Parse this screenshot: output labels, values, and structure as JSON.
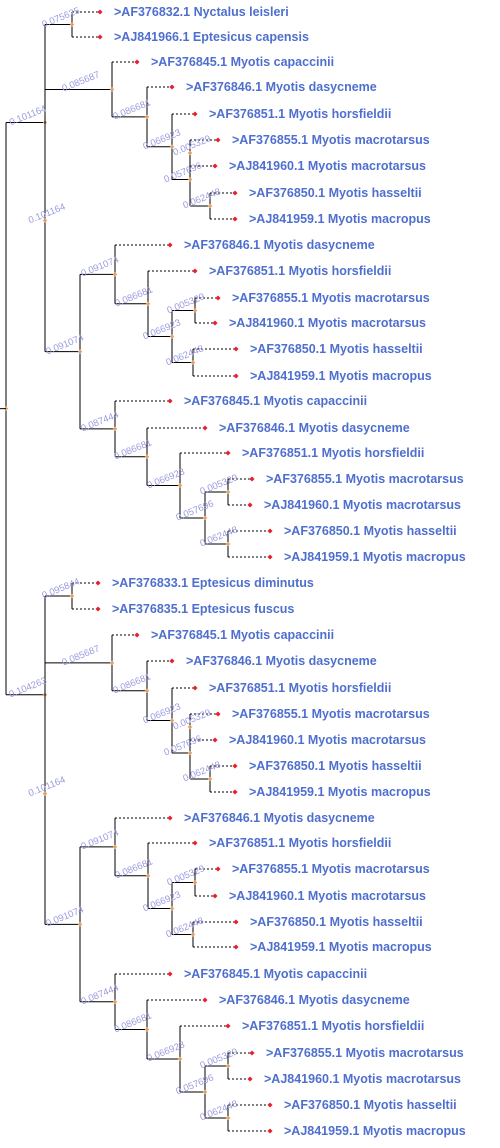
{
  "tree": {
    "colors": {
      "branch": "#000000",
      "leaf_branch": "#000000",
      "leaf_marker": "#e8202a",
      "node_marker": "#e8a060",
      "label": "#4f6fcf",
      "branch_value": "#9a9ae0"
    },
    "leaves": [
      "AF376832.1 Nyctalus leisleri",
      "AJ841966.1 Eptesicus capensis",
      "AF376845.1 Myotis capaccinii",
      "AF376846.1 Myotis dasycneme",
      "AF376851.1 Myotis horsfieldii",
      "AF376855.1 Myotis macrotarsus",
      "AJ841960.1 Myotis macrotarsus",
      "AF376850.1 Myotis hasseltii",
      "AJ841959.1 Myotis macropus",
      "AF376846.1 Myotis dasycneme",
      "AF376851.1 Myotis horsfieldii",
      "AF376855.1 Myotis macrotarsus",
      "AJ841960.1 Myotis macrotarsus",
      "AF376850.1 Myotis hasseltii",
      "AJ841959.1 Myotis macropus",
      "AF376845.1 Myotis capaccinii",
      "AF376846.1 Myotis dasycneme",
      "AF376851.1 Myotis horsfieldii",
      "AF376855.1 Myotis macrotarsus",
      "AJ841960.1 Myotis macrotarsus",
      "AF376850.1 Myotis hasseltii",
      "AJ841959.1 Myotis macropus",
      "AF376833.1 Eptesicus diminutus",
      "AF376835.1 Eptesicus fuscus",
      "AF376845.1 Myotis capaccinii",
      "AF376846.1 Myotis dasycneme",
      "AF376851.1 Myotis horsfieldii",
      "AF376855.1 Myotis macrotarsus",
      "AJ841960.1 Myotis macrotarsus",
      "AF376850.1 Myotis hasseltii",
      "AJ841959.1 Myotis macropus",
      "AF376846.1 Myotis dasycneme",
      "AF376851.1 Myotis horsfieldii",
      "AF376855.1 Myotis macrotarsus",
      "AJ841960.1 Myotis macrotarsus",
      "AF376850.1 Myotis hasseltii",
      "AJ841959.1 Myotis macropus",
      "AF376845.1 Myotis capaccinii",
      "AF376846.1 Myotis dasycneme",
      "AF376851.1 Myotis horsfieldii",
      "AF376855.1 Myotis macrotarsus",
      "AJ841960.1 Myotis macrotarsus",
      "AF376850.1 Myotis hasseltii",
      "AJ841959.1 Myotis macropus"
    ],
    "label_prefix": ">",
    "branch_values": {
      "root_top": "0.101164",
      "root_bottom": "0.104263",
      "outgroup_a": "0.075625",
      "outgroup_b": "0.095844",
      "myotis_a": "0.085687",
      "myotis_b": "0.091074",
      "myotis_c": "0.087444",
      "sub_a": "0.086681",
      "sub_b": "0.066923",
      "sub_c": "0.005329",
      "sub_d": "0.057696",
      "sub_e": "0.062448"
    }
  }
}
